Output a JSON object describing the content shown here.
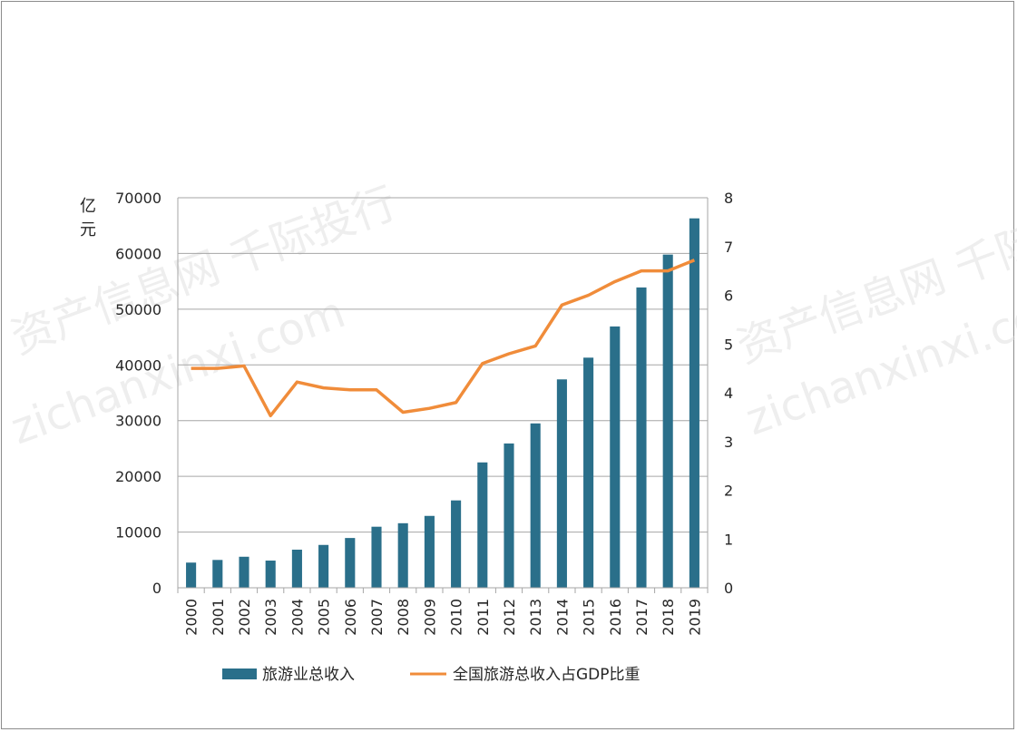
{
  "chart_data": {
    "type": "bar+line",
    "categories": [
      "2000",
      "2001",
      "2002",
      "2003",
      "2004",
      "2005",
      "2006",
      "2007",
      "2008",
      "2009",
      "2010",
      "2011",
      "2012",
      "2013",
      "2014",
      "2015",
      "2016",
      "2017",
      "2018",
      "2019"
    ],
    "series": [
      {
        "name": "旅游业总收入",
        "type": "bar",
        "axis": "left",
        "color": "#2a6f8a",
        "values": [
          4520,
          4995,
          5570,
          4880,
          6840,
          7690,
          8935,
          10957,
          11585,
          12900,
          15680,
          22500,
          25900,
          29500,
          37400,
          41300,
          46900,
          53900,
          59800,
          66300
        ]
      },
      {
        "name": "全国旅游总收入占GDP比重",
        "type": "line",
        "axis": "right",
        "color": "#f08c3a",
        "values": [
          4.5,
          4.5,
          4.55,
          3.53,
          4.22,
          4.1,
          4.06,
          4.06,
          3.6,
          3.68,
          3.8,
          4.6,
          4.8,
          4.96,
          5.8,
          6.0,
          6.28,
          6.5,
          6.5,
          6.72
        ]
      }
    ],
    "y_left": {
      "label": "亿元",
      "min": 0,
      "max": 70000,
      "ticks": [
        "0",
        "10000",
        "20000",
        "30000",
        "40000",
        "50000",
        "60000",
        "70000"
      ]
    },
    "y_right": {
      "min": 0,
      "max": 8,
      "ticks": [
        "0",
        "1",
        "2",
        "3",
        "4",
        "5",
        "6",
        "7",
        "8"
      ]
    },
    "grid": true,
    "legend_position": "bottom"
  },
  "colors": {
    "bar": "#2a6f8a",
    "line": "#f08c3a",
    "grid": "#a6a6a6",
    "frame": "#8c8c8c"
  },
  "watermark": {
    "text_cn": "资产信息网 千际投行",
    "text_url": "zichanxinxi.com"
  }
}
